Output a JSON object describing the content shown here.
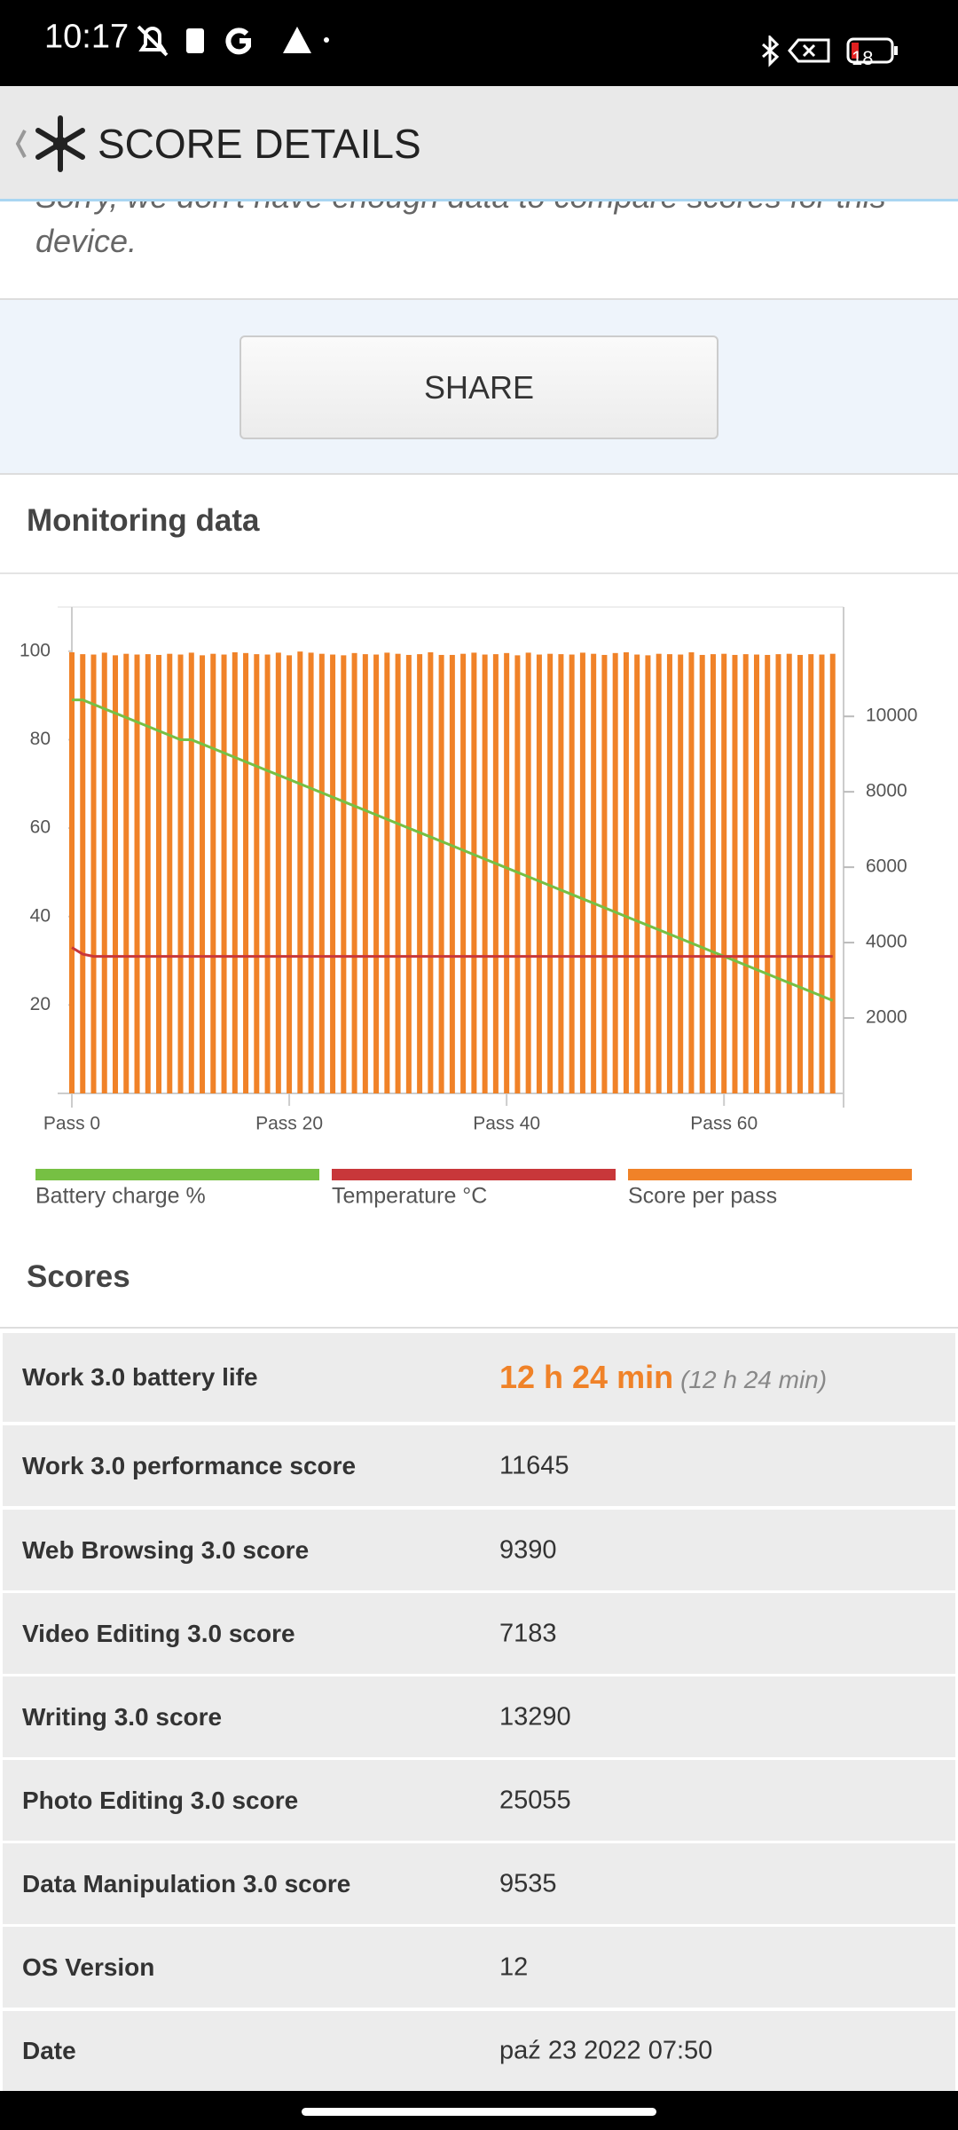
{
  "status_bar": {
    "time": "10:17",
    "battery": "18"
  },
  "header": {
    "title": "SCORE DETAILS"
  },
  "message": "Sorry, we don't have enough data to compare scores for this device.",
  "share_button": "SHARE",
  "monitoring": {
    "title": "Monitoring data",
    "chart_data": {
      "type": "bar",
      "x": [
        0,
        1,
        2,
        3,
        4,
        5,
        6,
        7,
        8,
        9,
        10,
        11,
        12,
        13,
        14,
        15,
        16,
        17,
        18,
        19,
        20,
        21,
        22,
        23,
        24,
        25,
        26,
        27,
        28,
        29,
        30,
        31,
        32,
        33,
        34,
        35,
        36,
        37,
        38,
        39,
        40,
        41,
        42,
        43,
        44,
        45,
        46,
        47,
        48,
        49,
        50,
        51,
        52,
        53,
        54,
        55,
        56,
        57,
        58,
        59,
        60,
        61,
        62,
        63,
        64,
        65,
        66,
        67,
        68,
        69,
        70
      ],
      "xlim": [
        0,
        71
      ],
      "xticks": [
        {
          "value": 0,
          "label": "Pass 0"
        },
        {
          "value": 20,
          "label": "Pass 20"
        },
        {
          "value": 40,
          "label": "Pass 40"
        },
        {
          "value": 60,
          "label": "Pass 60"
        }
      ],
      "ylim": [
        0,
        110
      ],
      "yticks": [
        20,
        40,
        60,
        80,
        100
      ],
      "y2lim": [
        0,
        12900
      ],
      "y2ticks": [
        2000,
        4000,
        6000,
        8000,
        10000
      ],
      "series": [
        {
          "name": "Battery charge %",
          "type": "line",
          "color": "#76c043",
          "values": [
            89,
            89,
            88,
            87,
            86,
            85,
            84,
            83,
            82,
            81,
            80,
            80,
            79,
            78,
            77,
            76,
            75,
            74,
            73,
            72,
            71,
            70,
            69,
            68,
            67,
            66,
            65,
            64,
            63,
            62,
            61,
            60,
            59,
            58,
            57,
            56,
            55,
            54,
            53,
            52,
            51,
            50,
            49,
            48,
            47,
            46,
            45,
            44,
            43,
            42,
            41,
            40,
            39,
            38,
            37,
            36,
            35,
            34,
            33,
            32,
            31,
            30,
            29,
            28,
            27,
            26,
            25,
            24,
            23,
            22,
            21
          ]
        },
        {
          "name": "Temperature °C",
          "type": "line",
          "color": "#c8373a",
          "values": [
            33,
            31.5,
            31,
            31,
            31,
            31,
            31,
            31,
            31,
            31,
            31,
            31,
            31,
            31,
            31,
            31,
            31,
            31,
            31,
            31,
            31,
            31,
            31,
            31,
            31,
            31,
            31,
            31,
            31,
            31,
            31,
            31,
            31,
            31,
            31,
            31,
            31,
            31,
            31,
            31,
            31,
            31,
            31,
            31,
            31,
            31,
            31,
            31,
            31,
            31,
            31,
            31,
            31,
            31,
            31,
            31,
            31,
            31,
            31,
            31,
            31,
            31,
            31,
            31,
            31,
            31,
            31,
            31,
            31,
            31,
            31
          ]
        },
        {
          "name": "Score per pass",
          "type": "bar",
          "axis": "y2",
          "color": "#f08228",
          "values": [
            11700,
            11650,
            11640,
            11690,
            11620,
            11660,
            11640,
            11650,
            11630,
            11660,
            11640,
            11690,
            11620,
            11660,
            11640,
            11700,
            11680,
            11650,
            11640,
            11690,
            11620,
            11720,
            11690,
            11660,
            11640,
            11620,
            11680,
            11650,
            11640,
            11690,
            11660,
            11630,
            11650,
            11700,
            11630,
            11630,
            11660,
            11690,
            11640,
            11650,
            11680,
            11620,
            11690,
            11640,
            11660,
            11650,
            11640,
            11690,
            11660,
            11630,
            11680,
            11700,
            11640,
            11620,
            11660,
            11650,
            11640,
            11700,
            11630,
            11650,
            11660,
            11630,
            11650,
            11640,
            11630,
            11650,
            11660,
            11630,
            11650,
            11640,
            11660
          ]
        }
      ]
    }
  },
  "scores": {
    "title": "Scores",
    "rows": [
      {
        "label": "Work 3.0 battery life",
        "value": "12 h 24 min",
        "secondary": "(12 h 24 min)"
      },
      {
        "label": "Work 3.0 performance score",
        "value": 11645
      },
      {
        "label": "Web Browsing 3.0 score",
        "value": 9390
      },
      {
        "label": "Video Editing 3.0 score",
        "value": 7183
      },
      {
        "label": "Writing 3.0 score",
        "value": 13290
      },
      {
        "label": "Photo Editing 3.0 score",
        "value": 25055
      },
      {
        "label": "Data Manipulation 3.0 score",
        "value": 9535
      },
      {
        "label": "OS Version",
        "value": 12
      },
      {
        "label": "Date",
        "value": "paź 23 2022 07:50"
      }
    ]
  }
}
